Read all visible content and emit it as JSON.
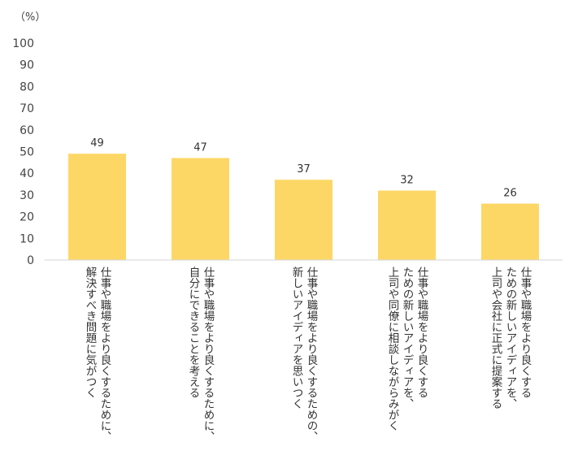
{
  "chart_data": {
    "type": "bar",
    "unit": "（%）",
    "ylim": [
      0,
      100
    ],
    "yticks": [
      0,
      10,
      20,
      30,
      40,
      50,
      60,
      70,
      80,
      90,
      100
    ],
    "grid": false,
    "bar_color": "#FDD766",
    "categories": [
      [
        "仕事や職場をより良くするために、",
        "解決すべき問題に気がつく"
      ],
      [
        "仕事や職場をより良くするために、",
        "自分にできることを考える"
      ],
      [
        "仕事や職場をより良くするための、",
        "新しいアイディアを思いつく"
      ],
      [
        "仕事や職場をより良くする",
        "ための新しいアイディアを、",
        "上司や同僚に相談しながらみがく"
      ],
      [
        "仕事や職場をより良くする",
        "ための新しいアイディアを、",
        "上司や会社に正式に提案する"
      ]
    ],
    "values": [
      49,
      47,
      37,
      32,
      26
    ]
  }
}
